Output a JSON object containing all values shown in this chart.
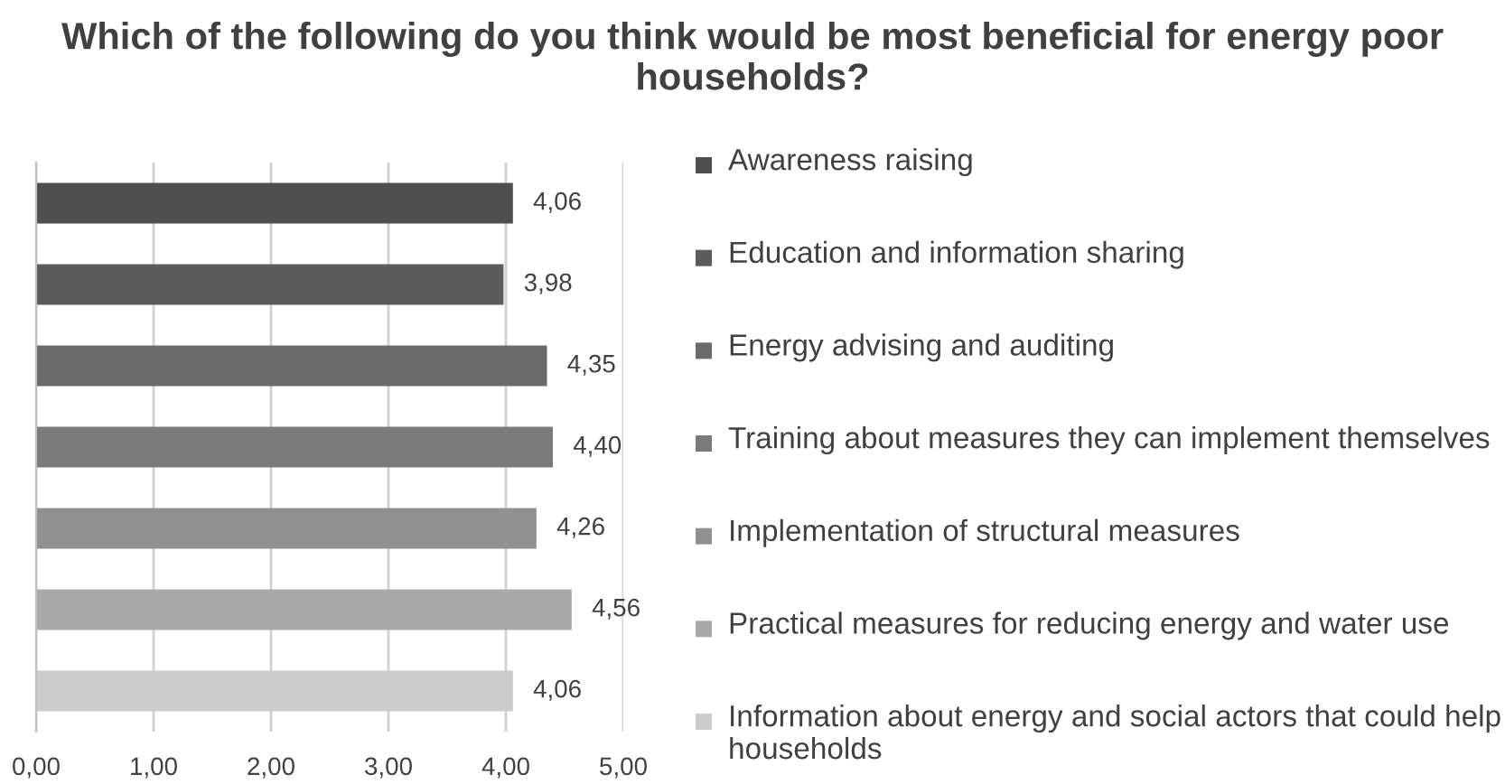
{
  "chart_data": {
    "type": "bar",
    "orientation": "horizontal",
    "title": "Which of the following do you think would be most beneficial for energy poor households?",
    "categories": [
      null,
      null,
      null,
      null,
      null,
      null,
      null
    ],
    "series": [
      {
        "name": "Awareness raising",
        "color": "#4f4f4f",
        "values": [
          4.06,
          null,
          null,
          null,
          null,
          null,
          null
        ],
        "value_labels": [
          "4,06",
          null,
          null,
          null,
          null,
          null,
          null
        ]
      },
      {
        "name": "Education and information sharing",
        "color": "#5c5c5c",
        "values": [
          null,
          3.98,
          null,
          null,
          null,
          null,
          null
        ],
        "value_labels": [
          null,
          "3,98",
          null,
          null,
          null,
          null,
          null
        ]
      },
      {
        "name": "Energy advising and auditing",
        "color": "#6b6b6b",
        "values": [
          null,
          null,
          4.35,
          null,
          null,
          null,
          null
        ],
        "value_labels": [
          null,
          null,
          "4,35",
          null,
          null,
          null,
          null
        ]
      },
      {
        "name": "Training about measures they can implement themselves",
        "color": "#7a7a7a",
        "values": [
          null,
          null,
          null,
          4.4,
          null,
          null,
          null
        ],
        "value_labels": [
          null,
          null,
          null,
          "4,40",
          null,
          null,
          null
        ]
      },
      {
        "name": "Implementation of structural measures",
        "color": "#909090",
        "values": [
          null,
          null,
          null,
          null,
          4.26,
          null,
          null
        ],
        "value_labels": [
          null,
          null,
          null,
          null,
          "4,26",
          null,
          null
        ]
      },
      {
        "name": "Practical measures for reducing energy and water use",
        "color": "#a9a9a9",
        "values": [
          null,
          null,
          null,
          null,
          null,
          4.56,
          null
        ],
        "value_labels": [
          null,
          null,
          null,
          null,
          null,
          "4,56",
          null
        ]
      },
      {
        "name": "Information about energy and social actors that could help households",
        "color": "#cbcbcb",
        "values": [
          null,
          null,
          null,
          null,
          null,
          null,
          4.06
        ],
        "value_labels": [
          null,
          null,
          null,
          null,
          null,
          null,
          "4,06"
        ]
      }
    ],
    "xlim": [
      0,
      5
    ],
    "xticks": [
      {
        "value": 0,
        "label": "0,00"
      },
      {
        "value": 1,
        "label": "1,00"
      },
      {
        "value": 2,
        "label": "2,00"
      },
      {
        "value": 3,
        "label": "3,00"
      },
      {
        "value": 4,
        "label": "4,00"
      },
      {
        "value": 5,
        "label": "5,00"
      }
    ],
    "grid": "x",
    "legend": "right",
    "tick_labels": "x"
  }
}
